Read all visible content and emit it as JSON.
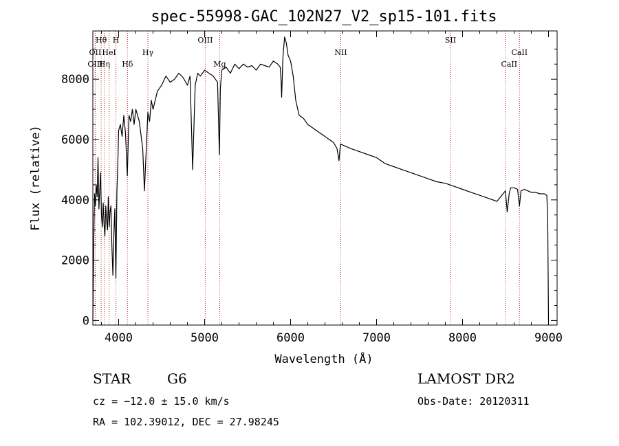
{
  "chart_data": {
    "type": "line",
    "title": "spec-55998-GAC_102N27_V2_sp15-101.fits",
    "xlabel": "Wavelength (Å)",
    "ylabel": "Flux (relative)",
    "xlim": [
      3700,
      9100
    ],
    "ylim": [
      -150,
      9600
    ],
    "x_ticks": [
      4000,
      5000,
      6000,
      7000,
      8000,
      9000
    ],
    "y_ticks": [
      0,
      2000,
      4000,
      6000,
      8000
    ],
    "grid": false,
    "series": [
      {
        "x": [
          3700,
          3710,
          3720,
          3730,
          3740,
          3750,
          3760,
          3770,
          3780,
          3790,
          3800,
          3810,
          3820,
          3830,
          3840,
          3850,
          3860,
          3870,
          3880,
          3890,
          3900,
          3910,
          3920,
          3933,
          3945,
          3955,
          3968,
          3980,
          3990,
          4000,
          4020,
          4040,
          4060,
          4080,
          4101,
          4120,
          4140,
          4160,
          4180,
          4200,
          4240,
          4280,
          4300,
          4320,
          4340,
          4360,
          4380,
          4400,
          4450,
          4500,
          4550,
          4600,
          4650,
          4700,
          4750,
          4800,
          4830,
          4861,
          4890,
          4920,
          4950,
          5000,
          5050,
          5100,
          5150,
          5172,
          5183,
          5200,
          5250,
          5300,
          5350,
          5400,
          5450,
          5500,
          5550,
          5600,
          5650,
          5700,
          5750,
          5800,
          5850,
          5880,
          5890,
          5896,
          5910,
          5930,
          5950,
          5970,
          6000,
          6030,
          6060,
          6100,
          6150,
          6200,
          6300,
          6400,
          6500,
          6540,
          6563,
          6580,
          6620,
          6700,
          6800,
          6900,
          7000,
          7100,
          7200,
          7300,
          7400,
          7500,
          7600,
          7700,
          7800,
          7900,
          8000,
          8100,
          8200,
          8300,
          8400,
          8498,
          8520,
          8542,
          8560,
          8600,
          8640,
          8662,
          8680,
          8720,
          8760,
          8800,
          8850,
          8900,
          8950,
          8980,
          8990,
          9000
        ],
        "values": [
          0,
          2600,
          4200,
          3800,
          4500,
          4100,
          5400,
          3700,
          4300,
          4900,
          3500,
          3100,
          3900,
          3200,
          2800,
          3800,
          3300,
          3000,
          4100,
          3100,
          3600,
          3800,
          2600,
          1500,
          2900,
          3700,
          1400,
          4300,
          5200,
          6300,
          6500,
          6100,
          6800,
          6200,
          4800,
          6800,
          6600,
          7000,
          6500,
          7000,
          6600,
          5700,
          4300,
          5600,
          6900,
          6600,
          7300,
          7000,
          7600,
          7800,
          8100,
          7900,
          8000,
          8200,
          8050,
          7800,
          8100,
          5000,
          7800,
          8200,
          8100,
          8300,
          8200,
          8100,
          7900,
          5500,
          7700,
          8300,
          8400,
          8200,
          8500,
          8350,
          8500,
          8400,
          8450,
          8300,
          8500,
          8450,
          8400,
          8600,
          8500,
          8400,
          7900,
          7400,
          8700,
          9400,
          9200,
          8800,
          8600,
          8100,
          7300,
          6800,
          6700,
          6500,
          6300,
          6100,
          5900,
          5700,
          5300,
          5850,
          5800,
          5700,
          5600,
          5500,
          5400,
          5200,
          5100,
          5000,
          4900,
          4800,
          4700,
          4600,
          4550,
          4450,
          4350,
          4250,
          4150,
          4050,
          3950,
          4300,
          3600,
          4200,
          4400,
          4400,
          4350,
          3800,
          4300,
          4350,
          4300,
          4250,
          4250,
          4200,
          4200,
          4150,
          3500,
          0
        ]
      }
    ],
    "lines": [
      {
        "label": "Hθ",
        "wl": 3797,
        "row": 1
      },
      {
        "label": "H",
        "wl": 3969,
        "row": 1
      },
      {
        "label": "OII",
        "wl": 3727,
        "row": 2
      },
      {
        "label": "HeI",
        "wl": 3889,
        "row": 2
      },
      {
        "label": "Hγ",
        "wl": 4340,
        "row": 2
      },
      {
        "label": "OIII",
        "wl": 3727,
        "row": 3
      },
      {
        "label": "Hη",
        "wl": 3835,
        "row": 3
      },
      {
        "label": "Hδ",
        "wl": 4102,
        "row": 3
      },
      {
        "label": "OIII",
        "wl": 5007,
        "row": 1
      },
      {
        "label": "Mg",
        "wl": 5175,
        "row": 3
      },
      {
        "label": "NII",
        "wl": 6583,
        "row": 2
      },
      {
        "label": "SII",
        "wl": 7860,
        "row": 1
      },
      {
        "label": "CaII",
        "wl": 8662,
        "row": 2
      },
      {
        "label": "CaII",
        "wl": 8542,
        "row": 3
      }
    ],
    "line_markers_wl": [
      3727,
      3797,
      3835,
      3889,
      3969,
      4102,
      4340,
      5007,
      5175,
      6583,
      7860,
      8498,
      8662
    ]
  },
  "info": {
    "class": "STAR",
    "subclass": "G6",
    "survey": "LAMOST DR2",
    "redshift": "cz = −12.0 ± 15.0 km/s",
    "obs_date": "Obs-Date: 20120311",
    "coords": "RA = 102.39012, DEC =  27.98245"
  },
  "colors": {
    "spectrum": "#000000",
    "line_markers": "#b22222"
  }
}
